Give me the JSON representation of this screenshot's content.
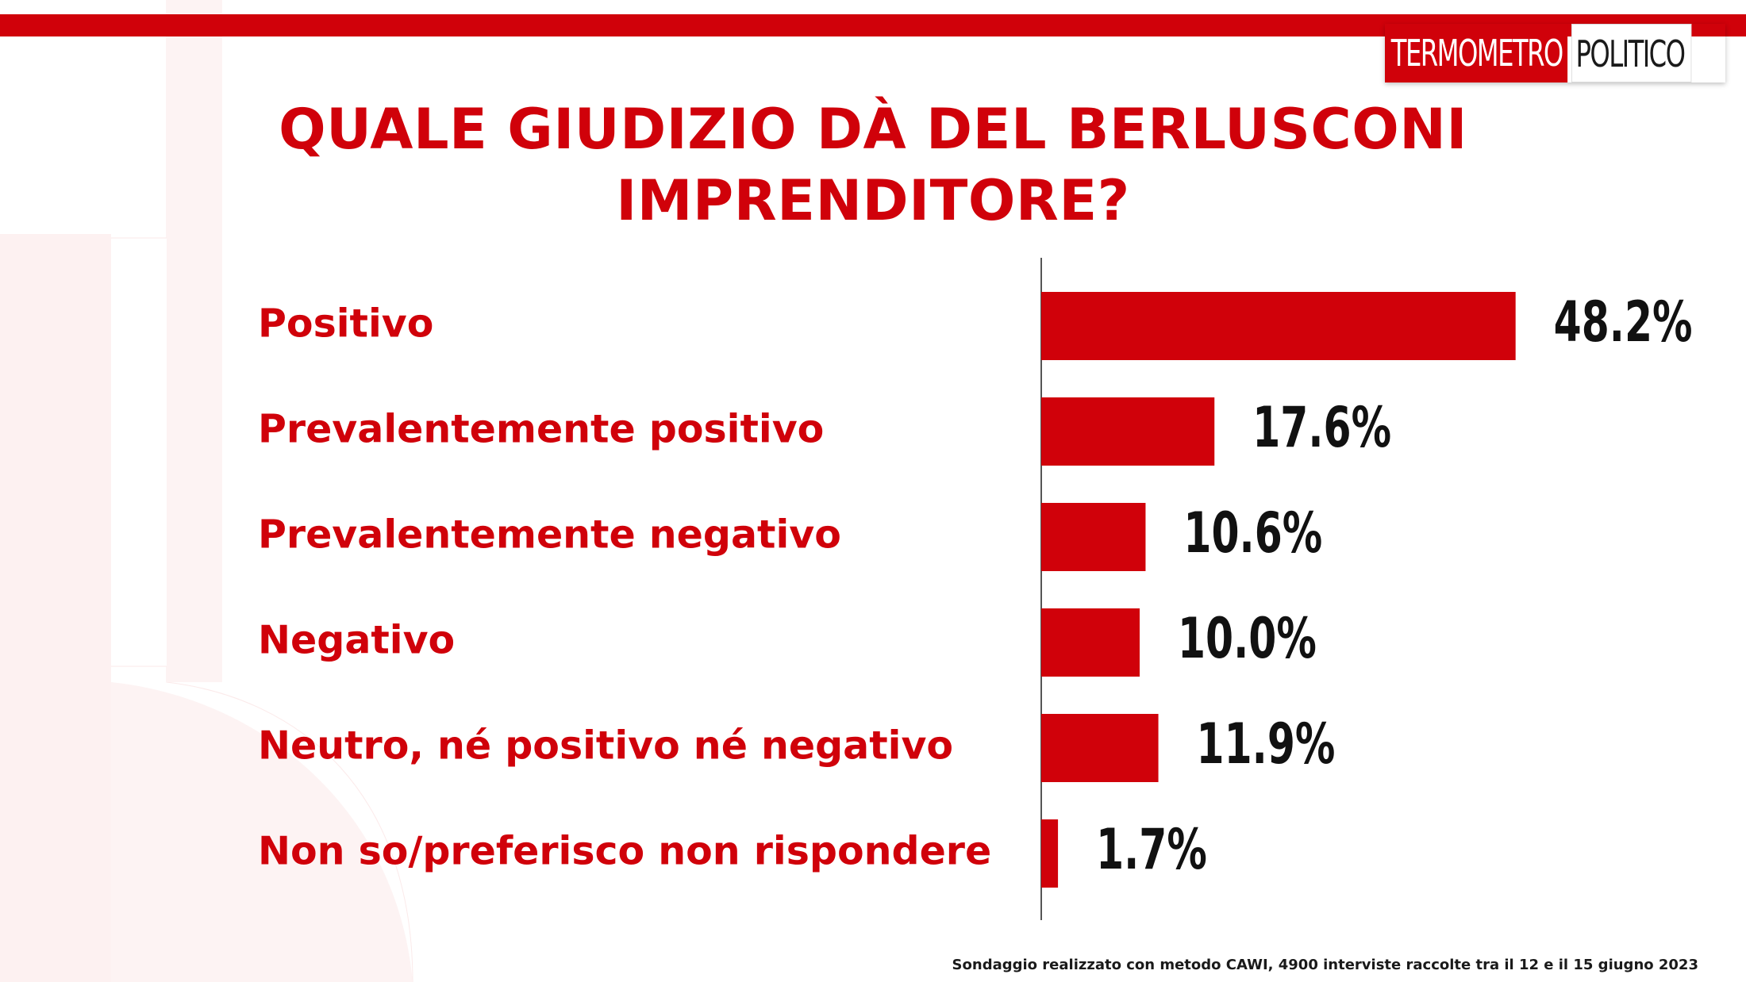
{
  "brand": {
    "logo_part1": "TERMOMETRO",
    "logo_part2": "POLITICO",
    "accent_color": "#d0010a"
  },
  "title": {
    "line1": "QUALE GIUDIZIO DÀ DEL BERLUSCONI",
    "line2": "IMPRENDITORE?"
  },
  "footnote": "Sondaggio realizzato con metodo CAWI, 4900 interviste raccolte tra il 12 e il 15 giugno 2023",
  "chart_data": {
    "type": "bar",
    "orientation": "horizontal",
    "categories": [
      "Positivo",
      "Prevalentemente positivo",
      "Prevalentemente negativo",
      "Negativo",
      "Neutro, né positivo né negativo",
      "Non so/preferisco non rispondere"
    ],
    "values": [
      48.2,
      17.6,
      10.6,
      10.0,
      11.9,
      1.7
    ],
    "value_labels": [
      "48.2%",
      "17.6%",
      "10.6%",
      "10.0%",
      "11.9%",
      "1.7%"
    ],
    "xlim": [
      0,
      50
    ],
    "bar_color": "#d0010a",
    "label_color": "#d0010a",
    "value_label_color": "#111111",
    "grid": false,
    "legend": "none"
  }
}
